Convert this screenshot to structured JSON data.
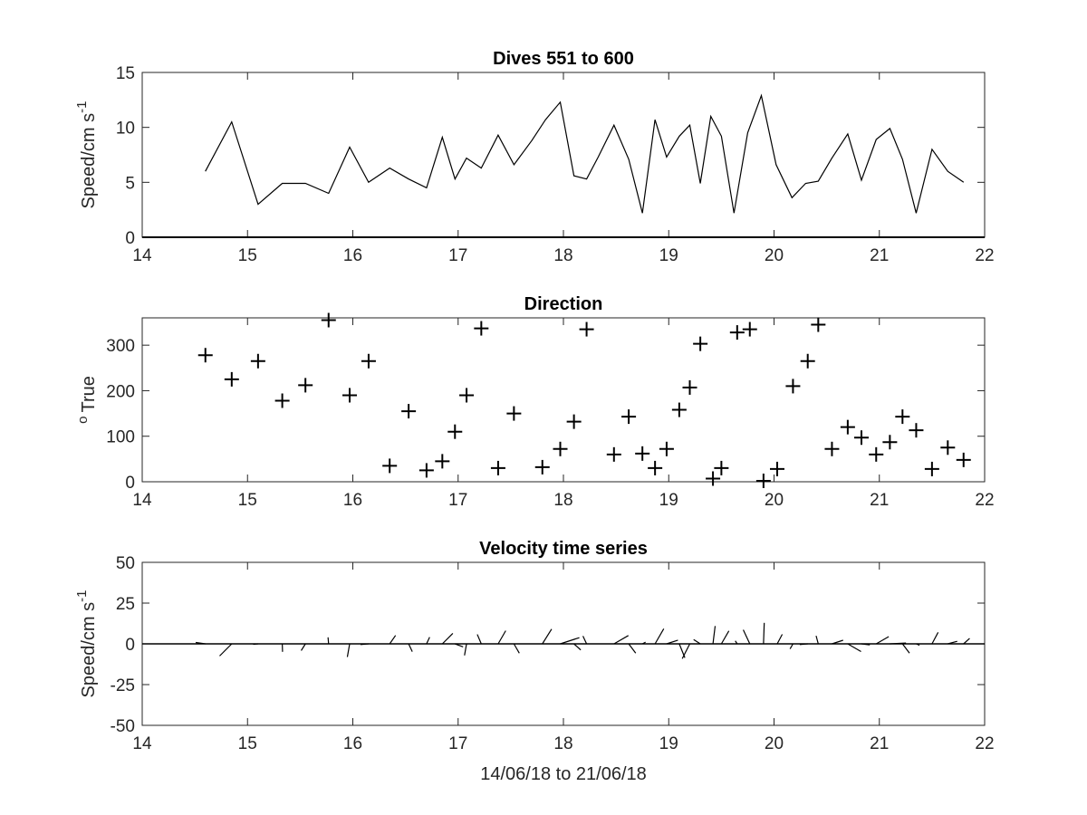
{
  "chart_data": [
    {
      "type": "line",
      "title": "Dives 551 to 600",
      "xlabel": "",
      "ylabel": "Speed/cm s",
      "ylabel_superscript": "-1",
      "xlim": [
        14,
        22
      ],
      "ylim": [
        0,
        15
      ],
      "xticks": [
        "14",
        "15",
        "16",
        "17",
        "18",
        "19",
        "20",
        "21",
        "22"
      ],
      "yticks": [
        "0",
        "5",
        "10",
        "15"
      ],
      "grid": false,
      "line_color": "#000000",
      "x": [
        14.6,
        14.85,
        15.1,
        15.33,
        15.55,
        15.77,
        15.97,
        16.15,
        16.35,
        16.53,
        16.7,
        16.85,
        16.97,
        17.08,
        17.22,
        17.38,
        17.53,
        17.7,
        17.83,
        17.97,
        18.1,
        18.22,
        18.33,
        18.48,
        18.62,
        18.75,
        18.87,
        18.98,
        19.1,
        19.2,
        19.3,
        19.4,
        19.5,
        19.62,
        19.75,
        19.88,
        20.02,
        20.17,
        20.3,
        20.42,
        20.55,
        20.7,
        20.83,
        20.97,
        21.1,
        21.22,
        21.35,
        21.5,
        21.65,
        21.8
      ],
      "y": [
        6,
        10.5,
        3,
        4.9,
        4.9,
        4,
        8.2,
        5,
        6.3,
        5.3,
        4.5,
        9.1,
        5.3,
        7.2,
        6.3,
        9.3,
        6.6,
        8.8,
        10.7,
        12.3,
        5.6,
        5.3,
        7.3,
        10.2,
        7.1,
        2.2,
        10.7,
        7.3,
        9.2,
        10.2,
        4.9,
        11,
        9.2,
        2.2,
        9.5,
        12.9,
        6.6,
        3.6,
        4.9,
        5.1,
        7.2,
        9.4,
        5.2,
        8.9,
        9.9,
        7.1,
        2.2,
        8,
        6,
        5
      ]
    },
    {
      "type": "scatter",
      "title": "Direction",
      "xlabel": "",
      "ylabel": "True",
      "ylabel_superscript": "o",
      "xlim": [
        14,
        22
      ],
      "ylim": [
        0,
        360
      ],
      "xticks": [
        "14",
        "15",
        "16",
        "17",
        "18",
        "19",
        "20",
        "21",
        "22"
      ],
      "yticks": [
        "0",
        "100",
        "200",
        "300"
      ],
      "grid": false,
      "marker": "+",
      "marker_color": "#000000",
      "x": [
        14.6,
        14.85,
        15.1,
        15.33,
        15.55,
        15.77,
        15.97,
        16.15,
        16.35,
        16.53,
        16.7,
        16.85,
        16.97,
        17.08,
        17.22,
        17.38,
        17.53,
        17.8,
        17.97,
        18.1,
        18.22,
        18.48,
        18.62,
        18.75,
        18.87,
        18.98,
        19.1,
        19.2,
        19.3,
        19.42,
        19.5,
        19.65,
        19.77,
        19.9,
        20.03,
        20.18,
        20.32,
        20.42,
        20.55,
        20.7,
        20.83,
        20.97,
        21.1,
        21.22,
        21.35,
        21.5,
        21.65,
        21.8
      ],
      "y": [
        278,
        225,
        265,
        178,
        212,
        355,
        190,
        265,
        35,
        155,
        25,
        45,
        110,
        190,
        337,
        30,
        150,
        32,
        72,
        132,
        335,
        60,
        143,
        62,
        30,
        72,
        158,
        207,
        303,
        7,
        30,
        328,
        335,
        2,
        28,
        210,
        265,
        345,
        72,
        120,
        97,
        60,
        87,
        143,
        113,
        28,
        75,
        48
      ]
    },
    {
      "type": "quiver",
      "title": "Velocity time series",
      "xlabel": "14/06/18 to 21/06/18",
      "ylabel": "Speed/cm s",
      "ylabel_superscript": "-1",
      "xlim": [
        14,
        22
      ],
      "ylim": [
        -50,
        50
      ],
      "xticks": [
        "14",
        "15",
        "16",
        "17",
        "18",
        "19",
        "20",
        "21",
        "22"
      ],
      "yticks": [
        "-50",
        "-25",
        "0",
        "25",
        "50"
      ],
      "grid": false,
      "baseline": 0,
      "line_color": "#000000",
      "x": [
        14.6,
        14.85,
        15.1,
        15.33,
        15.55,
        15.77,
        15.97,
        16.15,
        16.35,
        16.53,
        16.7,
        16.85,
        16.97,
        17.08,
        17.22,
        17.38,
        17.53,
        17.8,
        17.97,
        18.1,
        18.22,
        18.48,
        18.62,
        18.75,
        18.87,
        18.98,
        19.1,
        19.2,
        19.3,
        19.42,
        19.5,
        19.65,
        19.77,
        19.9,
        20.03,
        20.18,
        20.32,
        20.42,
        20.55,
        20.7,
        20.83,
        20.97,
        21.1,
        21.22,
        21.35,
        21.5,
        21.65,
        21.8
      ],
      "speed": [
        6,
        10.5,
        3,
        4.9,
        4.9,
        4,
        8.2,
        5,
        6.3,
        5.3,
        4.5,
        9.1,
        5.3,
        7.2,
        6.3,
        9.3,
        6.6,
        10.7,
        12.3,
        5.6,
        5.3,
        10.2,
        7.1,
        2.2,
        10.7,
        7.3,
        9.2,
        10.2,
        4.9,
        11,
        9.2,
        2.2,
        9.5,
        12.9,
        6.6,
        3.6,
        4.9,
        5.1,
        7.2,
        9.4,
        5.2,
        8.9,
        9.9,
        7.1,
        2.2,
        8,
        6,
        5
      ],
      "direction": [
        278,
        225,
        265,
        178,
        212,
        355,
        190,
        265,
        35,
        155,
        25,
        45,
        110,
        190,
        337,
        30,
        150,
        32,
        72,
        132,
        335,
        60,
        143,
        62,
        30,
        72,
        158,
        207,
        303,
        7,
        30,
        328,
        335,
        2,
        28,
        210,
        265,
        345,
        72,
        120,
        97,
        60,
        87,
        143,
        113,
        28,
        75,
        48
      ]
    }
  ]
}
